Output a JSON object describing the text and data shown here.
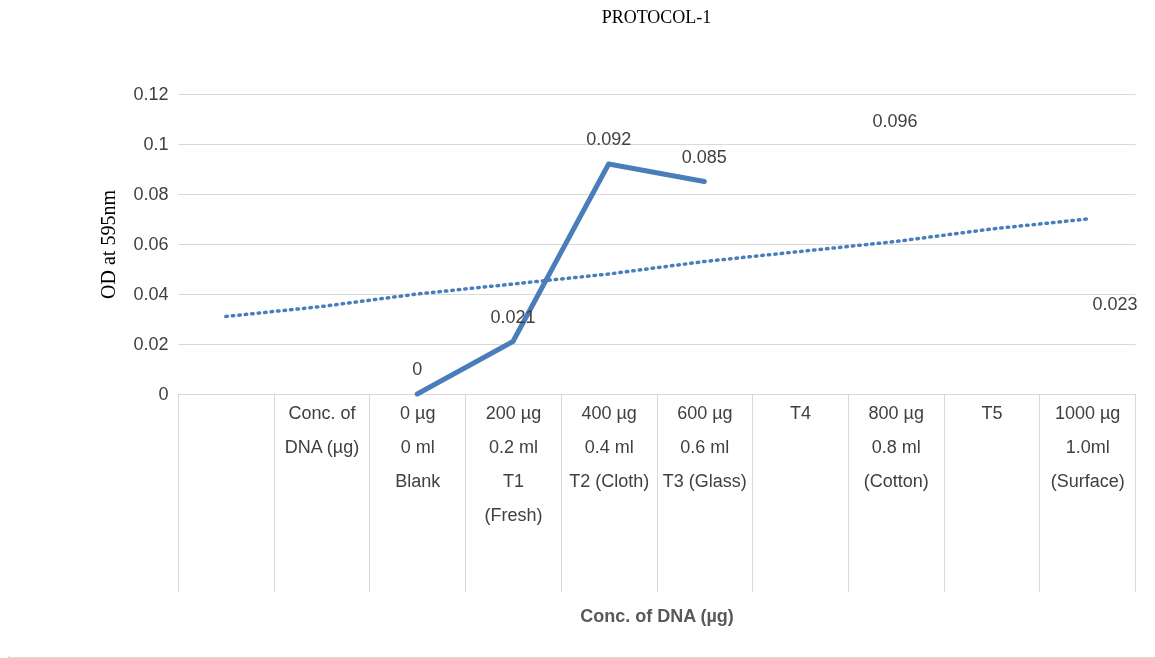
{
  "chart_data": {
    "type": "line",
    "title": "PROTOCOL-1",
    "xlabel": "Conc. of DNA (µg)",
    "ylabel": "OD at 595nm",
    "categories": [
      null,
      "Conc. of\nDNA (µg)",
      "0 µg\n0 ml\nBlank",
      "200 µg\n0.2 ml\nT1\n(Fresh)",
      "400 µg\n0.4 ml\nT2 (Cloth)",
      "600 µg\n0.6 ml\nT3 (Glass)",
      "T4",
      "800 µg\n0.8 ml\n(Cotton)",
      "T5",
      "1000 µg\n1.0ml\n(Surface)"
    ],
    "series": [
      {
        "color": "#4a7ebb",
        "line_style": "solid",
        "values": [
          null,
          null,
          0,
          0.021,
          0.092,
          0.085,
          null,
          null,
          null,
          null
        ],
        "value_labels": [
          null,
          null,
          "0",
          "0.021",
          "0.092",
          "0.085",
          null,
          null,
          null,
          null
        ]
      },
      {
        "color": "#4a7ebb",
        "line_style": "dotted",
        "values": [
          0.031,
          0.035,
          0.04,
          0.044,
          0.048,
          0.053,
          0.057,
          0.061,
          0.066,
          0.07
        ]
      }
    ],
    "annotations": [
      "0.096",
      "0.023"
    ],
    "ylim": [
      0,
      0.12
    ],
    "yticks": [
      0,
      0.02,
      0.04,
      0.06,
      0.08,
      0.1,
      0.12
    ],
    "grid": true,
    "marker": "none"
  }
}
